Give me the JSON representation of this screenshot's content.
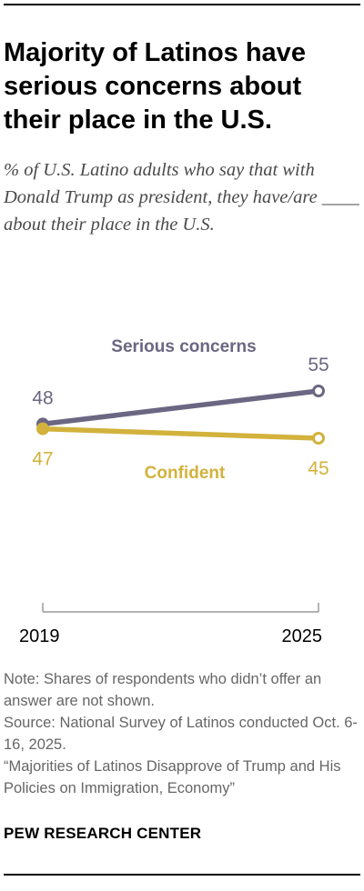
{
  "title": "Majority of Latinos have serious concerns about their place in the U.S.",
  "subtitle": "% of U.S. Latino adults who say that with Donald Trump as president, they have/are ____ about their place in the U.S.",
  "notes": [
    "Note: Shares of respondents who didn’t offer an answer are not shown.",
    "Source: National Survey of Latinos conducted Oct. 6-16, 2025.",
    "“Majorities of Latinos Disapprove of Trump and His Policies on Immigration, Economy”"
  ],
  "org": "PEW RESEARCH CENTER",
  "chart_data": {
    "type": "line",
    "x": [
      "2019",
      "2025"
    ],
    "x_tick_labels": [
      "2019",
      "2025"
    ],
    "ylim": [
      20,
      80
    ],
    "grid": false,
    "series": [
      {
        "name": "Serious concerns",
        "values": [
          48,
          55
        ],
        "labels": [
          "48",
          "55"
        ],
        "color": "#6b6682"
      },
      {
        "name": "Confident",
        "values": [
          47,
          45
        ],
        "labels": [
          "47",
          "45"
        ],
        "color": "#d2b23c"
      }
    ]
  }
}
